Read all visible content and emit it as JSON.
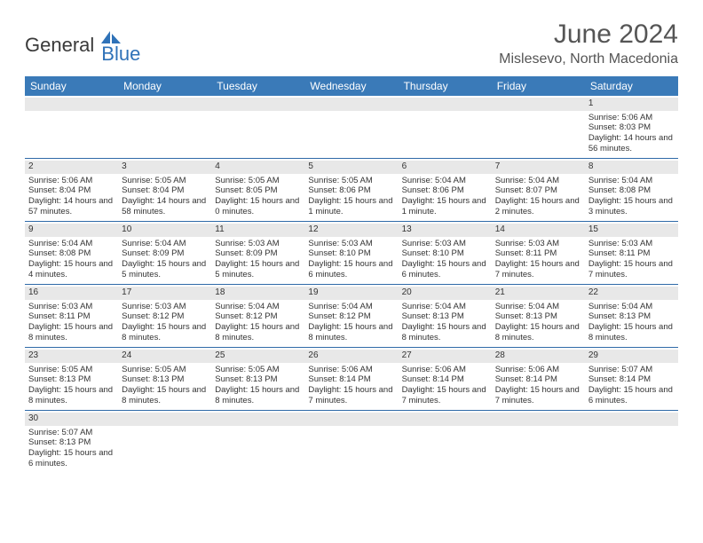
{
  "logo": {
    "textGeneral": "General",
    "textBlue": "Blue"
  },
  "title": "June 2024",
  "location": "Mislesevo, North Macedonia",
  "colors": {
    "headerBg": "#3a7ab8",
    "headerText": "#ffffff",
    "dayNumBg": "#e8e8e8",
    "weekBorder": "#2f6aa8",
    "logoBlue": "#2f72b8",
    "textGray": "#555555"
  },
  "dayNames": [
    "Sunday",
    "Monday",
    "Tuesday",
    "Wednesday",
    "Thursday",
    "Friday",
    "Saturday"
  ],
  "weeks": [
    [
      null,
      null,
      null,
      null,
      null,
      null,
      {
        "n": "1",
        "sr": "5:06 AM",
        "ss": "8:03 PM",
        "dl": "14 hours and 56 minutes."
      }
    ],
    [
      {
        "n": "2",
        "sr": "5:06 AM",
        "ss": "8:04 PM",
        "dl": "14 hours and 57 minutes."
      },
      {
        "n": "3",
        "sr": "5:05 AM",
        "ss": "8:04 PM",
        "dl": "14 hours and 58 minutes."
      },
      {
        "n": "4",
        "sr": "5:05 AM",
        "ss": "8:05 PM",
        "dl": "15 hours and 0 minutes."
      },
      {
        "n": "5",
        "sr": "5:05 AM",
        "ss": "8:06 PM",
        "dl": "15 hours and 1 minute."
      },
      {
        "n": "6",
        "sr": "5:04 AM",
        "ss": "8:06 PM",
        "dl": "15 hours and 1 minute."
      },
      {
        "n": "7",
        "sr": "5:04 AM",
        "ss": "8:07 PM",
        "dl": "15 hours and 2 minutes."
      },
      {
        "n": "8",
        "sr": "5:04 AM",
        "ss": "8:08 PM",
        "dl": "15 hours and 3 minutes."
      }
    ],
    [
      {
        "n": "9",
        "sr": "5:04 AM",
        "ss": "8:08 PM",
        "dl": "15 hours and 4 minutes."
      },
      {
        "n": "10",
        "sr": "5:04 AM",
        "ss": "8:09 PM",
        "dl": "15 hours and 5 minutes."
      },
      {
        "n": "11",
        "sr": "5:03 AM",
        "ss": "8:09 PM",
        "dl": "15 hours and 5 minutes."
      },
      {
        "n": "12",
        "sr": "5:03 AM",
        "ss": "8:10 PM",
        "dl": "15 hours and 6 minutes."
      },
      {
        "n": "13",
        "sr": "5:03 AM",
        "ss": "8:10 PM",
        "dl": "15 hours and 6 minutes."
      },
      {
        "n": "14",
        "sr": "5:03 AM",
        "ss": "8:11 PM",
        "dl": "15 hours and 7 minutes."
      },
      {
        "n": "15",
        "sr": "5:03 AM",
        "ss": "8:11 PM",
        "dl": "15 hours and 7 minutes."
      }
    ],
    [
      {
        "n": "16",
        "sr": "5:03 AM",
        "ss": "8:11 PM",
        "dl": "15 hours and 8 minutes."
      },
      {
        "n": "17",
        "sr": "5:03 AM",
        "ss": "8:12 PM",
        "dl": "15 hours and 8 minutes."
      },
      {
        "n": "18",
        "sr": "5:04 AM",
        "ss": "8:12 PM",
        "dl": "15 hours and 8 minutes."
      },
      {
        "n": "19",
        "sr": "5:04 AM",
        "ss": "8:12 PM",
        "dl": "15 hours and 8 minutes."
      },
      {
        "n": "20",
        "sr": "5:04 AM",
        "ss": "8:13 PM",
        "dl": "15 hours and 8 minutes."
      },
      {
        "n": "21",
        "sr": "5:04 AM",
        "ss": "8:13 PM",
        "dl": "15 hours and 8 minutes."
      },
      {
        "n": "22",
        "sr": "5:04 AM",
        "ss": "8:13 PM",
        "dl": "15 hours and 8 minutes."
      }
    ],
    [
      {
        "n": "23",
        "sr": "5:05 AM",
        "ss": "8:13 PM",
        "dl": "15 hours and 8 minutes."
      },
      {
        "n": "24",
        "sr": "5:05 AM",
        "ss": "8:13 PM",
        "dl": "15 hours and 8 minutes."
      },
      {
        "n": "25",
        "sr": "5:05 AM",
        "ss": "8:13 PM",
        "dl": "15 hours and 8 minutes."
      },
      {
        "n": "26",
        "sr": "5:06 AM",
        "ss": "8:14 PM",
        "dl": "15 hours and 7 minutes."
      },
      {
        "n": "27",
        "sr": "5:06 AM",
        "ss": "8:14 PM",
        "dl": "15 hours and 7 minutes."
      },
      {
        "n": "28",
        "sr": "5:06 AM",
        "ss": "8:14 PM",
        "dl": "15 hours and 7 minutes."
      },
      {
        "n": "29",
        "sr": "5:07 AM",
        "ss": "8:14 PM",
        "dl": "15 hours and 6 minutes."
      }
    ],
    [
      {
        "n": "30",
        "sr": "5:07 AM",
        "ss": "8:13 PM",
        "dl": "15 hours and 6 minutes."
      },
      null,
      null,
      null,
      null,
      null,
      null
    ]
  ],
  "labels": {
    "sunrise": "Sunrise:",
    "sunset": "Sunset:",
    "daylight": "Daylight:"
  }
}
